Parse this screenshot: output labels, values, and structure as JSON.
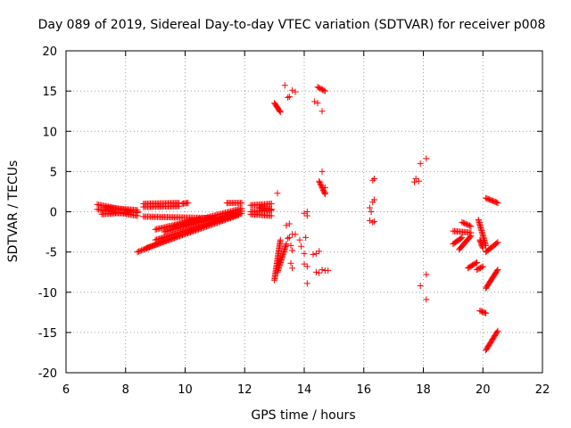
{
  "chart_data": {
    "type": "scatter",
    "title": "Day 089 of 2019, Sidereal Day-to-day VTEC variation (SDTVAR) for receiver p008",
    "xlabel": "GPS time / hours",
    "ylabel": "SDTVAR / TECUs",
    "xlim": [
      6,
      22
    ],
    "ylim": [
      -20,
      20
    ],
    "xticks": [
      6,
      8,
      10,
      12,
      14,
      16,
      18,
      20,
      22
    ],
    "yticks": [
      -20,
      -15,
      -10,
      -5,
      0,
      5,
      10,
      15,
      20
    ],
    "grid": true,
    "marker": "+",
    "color": "#ff0000",
    "segments": [
      {
        "x0": 7.05,
        "y0": 0.9,
        "x1": 8.4,
        "y1": -0.1
      },
      {
        "x0": 7.05,
        "y0": 0.3,
        "x1": 8.4,
        "y1": -0.5
      },
      {
        "x0": 7.2,
        "y0": -0.3,
        "x1": 8.4,
        "y1": 0.0
      },
      {
        "x0": 7.3,
        "y0": 0.5,
        "x1": 8.4,
        "y1": 0.2
      },
      {
        "x0": 8.6,
        "y0": 1.0,
        "x1": 9.8,
        "y1": 1.1
      },
      {
        "x0": 8.6,
        "y0": 0.6,
        "x1": 9.8,
        "y1": 0.7
      },
      {
        "x0": 9.9,
        "y0": 1.0,
        "x1": 10.1,
        "y1": 1.1
      },
      {
        "x0": 8.6,
        "y0": -0.6,
        "x1": 11.0,
        "y1": -0.8
      },
      {
        "x0": 8.4,
        "y0": -5.0,
        "x1": 11.6,
        "y1": -0.3
      },
      {
        "x0": 8.7,
        "y0": -4.5,
        "x1": 11.8,
        "y1": -0.4
      },
      {
        "x0": 9.0,
        "y0": -3.5,
        "x1": 11.9,
        "y1": -0.2
      },
      {
        "x0": 9.3,
        "y0": -2.5,
        "x1": 11.9,
        "y1": 0.1
      },
      {
        "x0": 9.6,
        "y0": -1.8,
        "x1": 11.9,
        "y1": 0.4
      },
      {
        "x0": 9.0,
        "y0": -2.2,
        "x1": 10.5,
        "y1": -0.9
      },
      {
        "x0": 11.4,
        "y0": 1.1,
        "x1": 11.9,
        "y1": 1.1
      },
      {
        "x0": 12.2,
        "y0": 0.8,
        "x1": 12.9,
        "y1": 1.0
      },
      {
        "x0": 12.2,
        "y0": 0.0,
        "x1": 12.9,
        "y1": 0.2
      },
      {
        "x0": 12.2,
        "y0": -0.3,
        "x1": 12.9,
        "y1": -0.5
      },
      {
        "x0": 12.5,
        "y0": 0.5,
        "x1": 12.9,
        "y1": 0.3
      },
      {
        "x0": 13.0,
        "y0": 13.5,
        "x1": 13.2,
        "y1": 12.4
      },
      {
        "x0": 14.45,
        "y0": 15.5,
        "x1": 14.7,
        "y1": 15.0
      },
      {
        "x0": 13.0,
        "y0": -8.5,
        "x1": 13.2,
        "y1": -3.5
      },
      {
        "x0": 13.1,
        "y0": -7.5,
        "x1": 13.4,
        "y1": -4.0
      },
      {
        "x0": 14.5,
        "y0": 3.8,
        "x1": 14.7,
        "y1": 2.2
      },
      {
        "x0": 19.9,
        "y0": -12.3,
        "x1": 20.1,
        "y1": -12.6
      },
      {
        "x0": 19.85,
        "y0": -1.0,
        "x1": 20.1,
        "y1": -4.2
      },
      {
        "x0": 19.9,
        "y0": -3.5,
        "x1": 20.0,
        "y1": -4.5
      },
      {
        "x0": 20.1,
        "y0": 1.7,
        "x1": 20.5,
        "y1": 1.1
      },
      {
        "x0": 20.1,
        "y0": -5.0,
        "x1": 20.5,
        "y1": -3.8
      },
      {
        "x0": 20.1,
        "y0": -9.5,
        "x1": 20.5,
        "y1": -7.2
      },
      {
        "x0": 20.1,
        "y0": -17.2,
        "x1": 20.5,
        "y1": -14.8
      },
      {
        "x0": 19.0,
        "y0": -4.0,
        "x1": 19.3,
        "y1": -3.2
      },
      {
        "x0": 19.2,
        "y0": -4.7,
        "x1": 19.6,
        "y1": -3.0
      },
      {
        "x0": 19.0,
        "y0": -2.4,
        "x1": 19.6,
        "y1": -2.6
      },
      {
        "x0": 19.5,
        "y0": -7.0,
        "x1": 19.8,
        "y1": -6.3
      },
      {
        "x0": 19.3,
        "y0": -1.3,
        "x1": 19.6,
        "y1": -1.8
      },
      {
        "x0": 19.8,
        "y0": -7.2,
        "x1": 20.0,
        "y1": -6.8
      }
    ],
    "points": [
      [
        13.1,
        2.3
      ],
      [
        13.35,
        15.7
      ],
      [
        13.45,
        14.2
      ],
      [
        13.6,
        15.1
      ],
      [
        13.7,
        14.9
      ],
      [
        13.5,
        14.3
      ],
      [
        13.4,
        -1.7
      ],
      [
        13.5,
        -3.2
      ],
      [
        13.6,
        -2.8
      ],
      [
        13.7,
        -2.8
      ],
      [
        13.55,
        -4.2
      ],
      [
        13.6,
        -4.8
      ],
      [
        13.55,
        -6.4
      ],
      [
        13.6,
        -7.0
      ],
      [
        13.5,
        -1.5
      ],
      [
        13.45,
        -3.3
      ],
      [
        14.0,
        -0.2
      ],
      [
        14.1,
        0.0
      ],
      [
        14.1,
        -0.5
      ],
      [
        13.9,
        -4.3
      ],
      [
        14.0,
        -5.2
      ],
      [
        14.0,
        -6.5
      ],
      [
        14.1,
        -6.8
      ],
      [
        14.1,
        -8.9
      ],
      [
        14.05,
        -3.2
      ],
      [
        13.85,
        -3.5
      ],
      [
        14.35,
        13.7
      ],
      [
        14.45,
        13.5
      ],
      [
        14.6,
        12.5
      ],
      [
        14.6,
        5.0
      ],
      [
        14.7,
        2.4
      ],
      [
        14.7,
        3.0
      ],
      [
        14.4,
        -5.2
      ],
      [
        14.5,
        -4.9
      ],
      [
        14.5,
        -7.6
      ],
      [
        14.6,
        -7.2
      ],
      [
        14.7,
        -7.3
      ],
      [
        14.8,
        -7.3
      ],
      [
        14.4,
        -7.5
      ],
      [
        14.3,
        -5.3
      ],
      [
        16.2,
        0.5
      ],
      [
        16.3,
        1.2
      ],
      [
        16.35,
        1.5
      ],
      [
        16.3,
        3.9
      ],
      [
        16.35,
        4.1
      ],
      [
        16.3,
        -1.3
      ],
      [
        16.2,
        -1.1
      ],
      [
        16.35,
        -1.2
      ],
      [
        16.25,
        0.0
      ],
      [
        17.7,
        3.7
      ],
      [
        17.75,
        4.1
      ],
      [
        17.85,
        3.8
      ],
      [
        17.9,
        6.0
      ],
      [
        18.1,
        6.6
      ],
      [
        17.9,
        -9.2
      ],
      [
        18.1,
        -7.8
      ],
      [
        18.1,
        -10.9
      ]
    ]
  }
}
